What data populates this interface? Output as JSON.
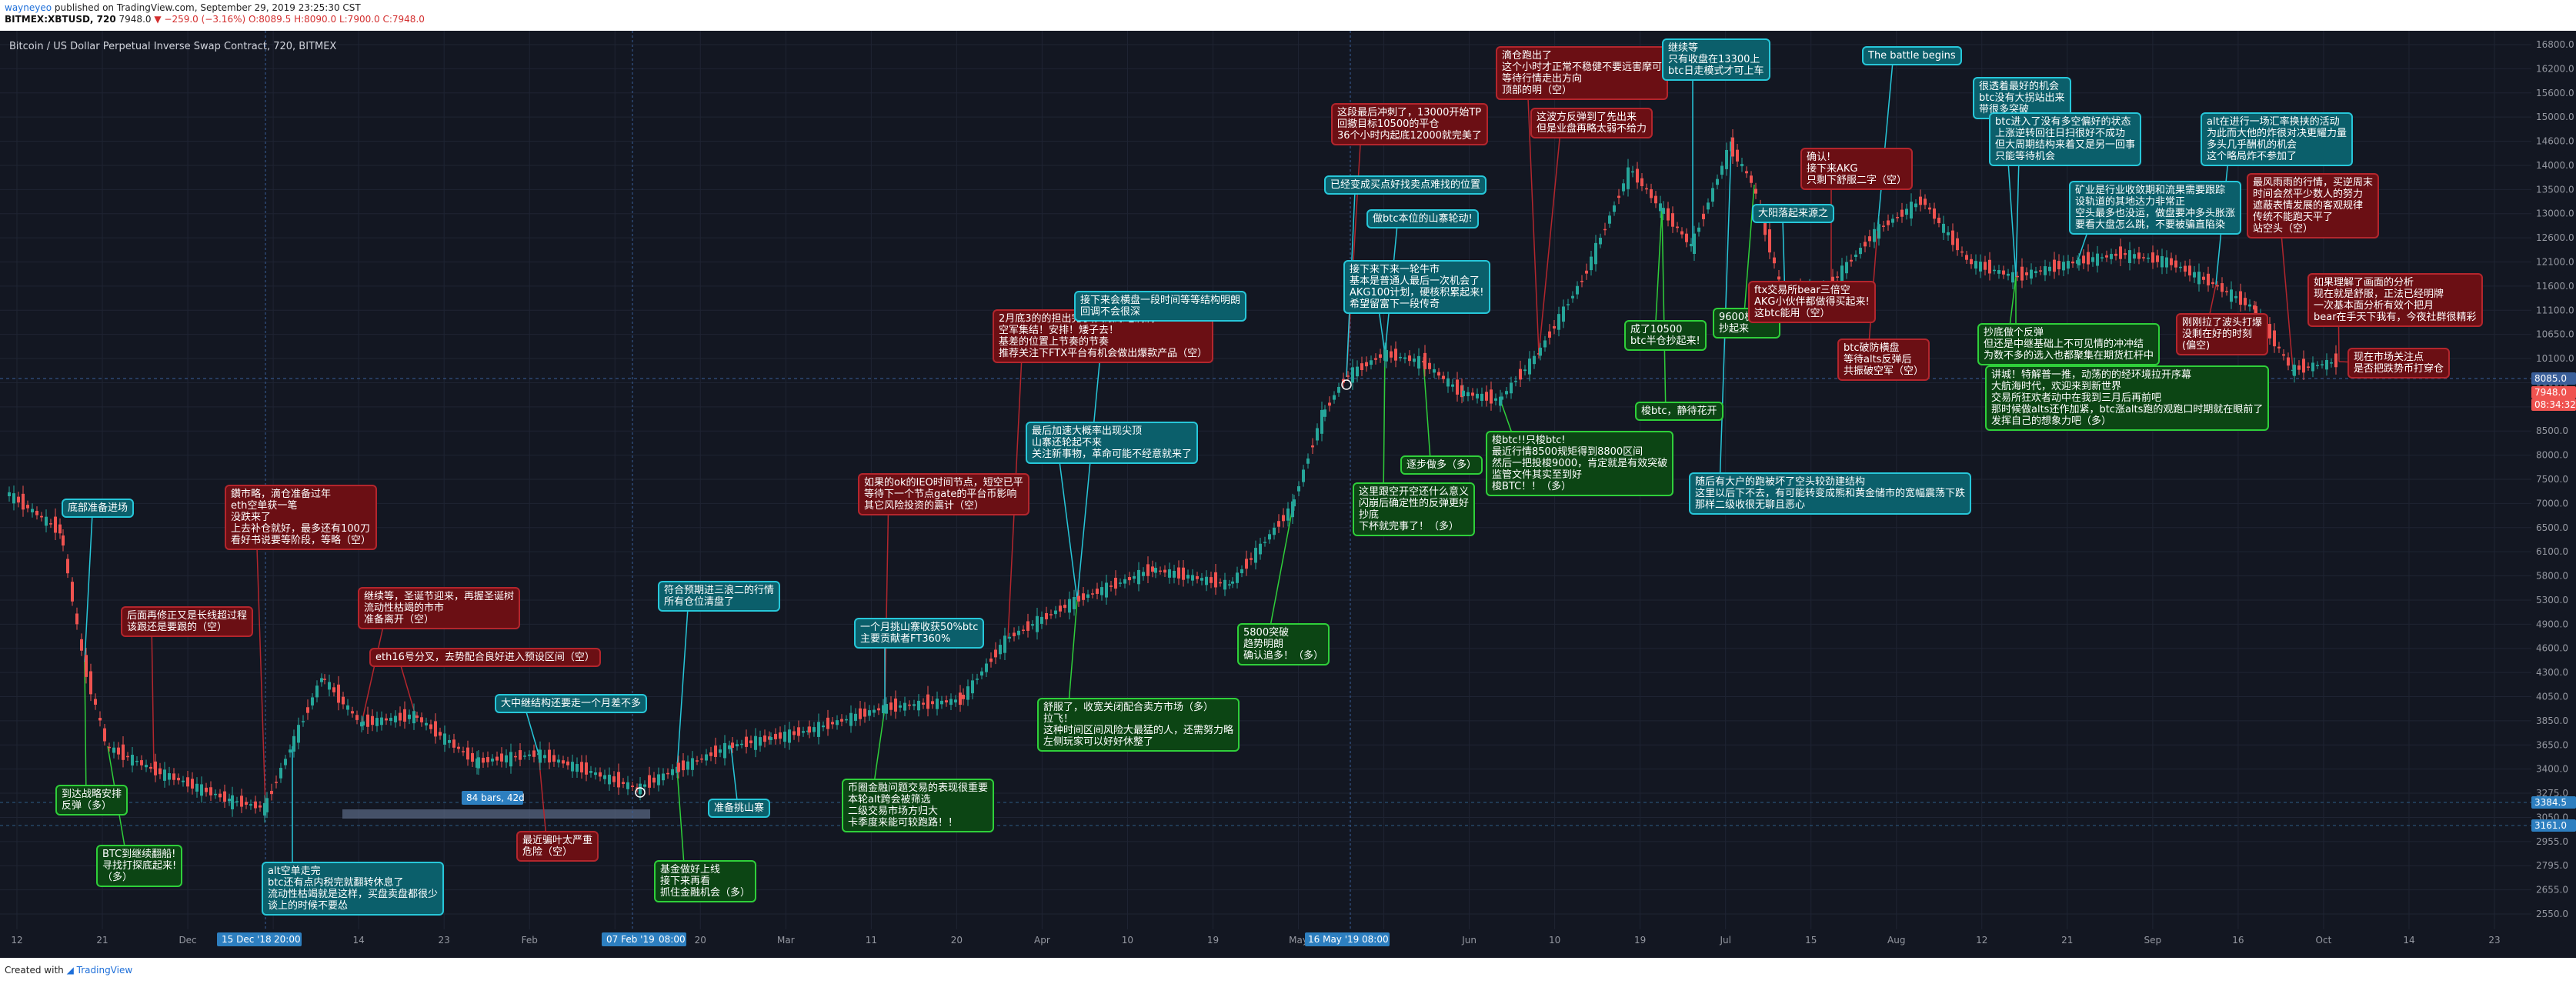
{
  "header": {
    "author": "wayneyeo",
    "published": " published on TradingView.com, September 29, 2019 23:25:30 CST",
    "symbol": "BITMEX:XBTUSD, 720",
    "last": "7948.0",
    "change": "▼ −259.0 (−3.16%)",
    "ohlc": "O:8089.5 H:8090.0 L:7900.0 C:7948.0"
  },
  "chart": {
    "title": "Bitcoin / US Dollar Perpetual Inverse Swap Contract, 720, BITMEX",
    "colors": {
      "bg": "#131722",
      "up": "#26a69a",
      "down": "#ef5350",
      "grid": "#1f2433",
      "cyan": "#27c7d9",
      "red": "#b3262d",
      "green": "#2fcf3a"
    },
    "price_ticks": [
      "16800.0",
      "16200.0",
      "15600.0",
      "15000.0",
      "14600.0",
      "14000.0",
      "13500.0",
      "13000.0",
      "12600.0",
      "12100.0",
      "11600.0",
      "11100.0",
      "10650.0",
      "10100.0",
      "9600.0",
      "9100.0",
      "8500.0",
      "8000.0",
      "7500.0",
      "7000.0",
      "6500.0",
      "6100.0",
      "5800.0",
      "5300.0",
      "4900.0",
      "4600.0",
      "4300.0",
      "4050.0",
      "3850.0",
      "3650.0",
      "3400.0",
      "3275.0",
      "3050.0",
      "2955.0",
      "2795.0",
      "2655.0",
      "2550.0"
    ],
    "price_tags": {
      "current": "7948.0",
      "countdown": "08:34:32",
      "level_high": "8085.0",
      "level_a": "3384.5",
      "level_b": "3161.0"
    },
    "time_ticks": [
      "12",
      "21",
      "Dec",
      "2019",
      "14",
      "23",
      "Feb",
      "11",
      "20",
      "Mar",
      "11",
      "20",
      "Apr",
      "10",
      "19",
      "May",
      "10",
      "Jun",
      "10",
      "19",
      "Jul",
      "15",
      "Aug",
      "12",
      "21",
      "Sep",
      "16",
      "Oct",
      "14",
      "23"
    ],
    "time_markers": [
      "15 Dec '18",
      "20:00",
      "07 Feb '19",
      "08:00",
      "16 May '19",
      "08:00"
    ],
    "range_label": "84 bars, 42d"
  },
  "annotations": [
    {
      "color": "cyan",
      "text": "底部准备进场"
    },
    {
      "color": "red",
      "text": "后面再修正又是长线超过程\n该跟还是要跟的（空）"
    },
    {
      "color": "green",
      "text": "到达战略安排\n反弹（多）"
    },
    {
      "color": "green",
      "text": "BTC到继续翻船!\n寻找打探底起来!\n（多）"
    },
    {
      "color": "red",
      "text": "鑽市略，滴仓准备过年\neth空单获一笔\n没跌来了\n上去补仓就好，最多还有100刀\n看好书说要等阶段，等略（空）"
    },
    {
      "color": "red",
      "text": "继续等，圣诞节迎来，再握圣诞树\n流动性枯竭的市市\n准备离开（空）"
    },
    {
      "color": "red",
      "text": "eth16号分叉，去势配合良好进入预设区间（空）"
    },
    {
      "color": "cyan",
      "text": "大中继结构还要走一个月差不多"
    },
    {
      "color": "cyan",
      "text": "alt空单走完\nbtc还有点内税完就翻转休息了\n流动性枯竭就是这样，买盘卖盘都很少\n谈上的时候不要怂"
    },
    {
      "color": "red",
      "text": "最近骗叶太严重\n危险（空）"
    },
    {
      "color": "cyan",
      "text": "符合预期进三浪二的行情\n所有仓位清盘了"
    },
    {
      "color": "green",
      "text": "基金做好上线\n接下来再看\n抓住金融机会（多）"
    },
    {
      "color": "cyan",
      "text": "准备挑山寨"
    },
    {
      "color": "red",
      "text": "如果的ok的IEO时间节点，短空已平\n等待下一个节点gate的平台币影响\n其它风险投资的震计（空）"
    },
    {
      "color": "cyan",
      "text": "一个月挑山寨收获50%btc\n主要贡献者FT360%"
    },
    {
      "color": "green",
      "text": "币圈金融问题交易的表现很重要\n本轮alt跨会被筛选\n二级交易市场方归大\n卡季度来能可较跑路！！"
    },
    {
      "color": "green",
      "text": "舒服了，收宽关闭配合卖方市场（多）\n拉飞！\n这种时间区间风险大最猛的人，还需努力略\n左侧玩家可以好好休整了"
    },
    {
      "color": "cyan",
      "text": "最后加速大概率出现尖顶\n山寨还轮起不来\n关注新事物，革命可能不经意就来了"
    },
    {
      "color": "red",
      "text": "2月底3的的担出完了,大跟踪吃满满\n空军集结！安排！矮子去！\n基差的位置上节奏的节奏\n推荐关注下FTX平台有机会做出爆款产品（空）"
    },
    {
      "color": "cyan",
      "text": "接下来会横盘一段时间等等结构明朗\n回调不会很深"
    },
    {
      "color": "green",
      "text": "5800突破\n趋势明朗\n确认追多！（多）"
    },
    {
      "color": "green",
      "text": "这里跟空开空还什么意义\n闪崩后确定性的反弹更好\n抄底\n下杯就完事了！（多）"
    },
    {
      "color": "cyan",
      "text": "接下来下来一轮牛市\n基本是普通人最后一次机会了\nAKG100计划，硬核积累起来!\n希望留富下一段传奇"
    },
    {
      "color": "green",
      "text": "逐步做多（多）"
    },
    {
      "color": "red",
      "text": "这段最后冲刺了，13000开始TP\n回撤目标10500的平仓\n36个小时内起底12000就完美了"
    },
    {
      "color": "cyan",
      "text": "已经变成买点好找卖点难找的位置"
    },
    {
      "color": "cyan",
      "text": "做btc本位的山寨轮动!"
    },
    {
      "color": "red",
      "text": "滴仓跑出了\n这个小时才正常不稳健不要远害摩可\n等待行情走出方向\n顶部的明（空）"
    },
    {
      "color": "red",
      "text": "这波方反弹到了先出来\n但是业盘再略太弱不给力"
    },
    {
      "color": "cyan",
      "text": "继续等\n只有收盘在13300上\nbtc日走模式才可上车"
    },
    {
      "color": "green",
      "text": "成了10500\nbtc半仓抄起来!"
    },
    {
      "color": "green",
      "text": "9600极限了\n抄起来"
    },
    {
      "color": "green",
      "text": "梭btc，静待花开"
    },
    {
      "color": "green",
      "text": "梭btc!!只梭btc!\n最近行情8500规矩得到8800区间\n然后一把投梭9000，肯定就是有效突破\n监管文件其实至到好\n梭BTC！！（多）"
    },
    {
      "color": "red",
      "text": "ftx交易所bear三倍空\nAKG小伙伴都做得买起来!\n这btc能用（空）"
    },
    {
      "color": "red",
      "text": "确认!\n接下来AKG\n只剩下舒服二字（空）"
    },
    {
      "color": "cyan",
      "text": "大阳落起来源之"
    },
    {
      "color": "red",
      "text": "btc破防横盘\n等待alts反弹后\n共振破空军（空）"
    },
    {
      "color": "cyan",
      "text": "The battle begins"
    },
    {
      "color": "cyan",
      "text": "很透着最好的机会\nbtc没有大拐站出来\n带很多突破"
    },
    {
      "color": "cyan",
      "text": "btc进入了没有多空偏好的状态\n上涨逆转回往日扫很好不成功\n但大周期结构来着又是另一回事\n只能等待机会"
    },
    {
      "color": "cyan",
      "text": "矿业是行业收敛期和流果需要跟踪\n设轨道的其地达力非常正\n空头最多也没运，做盘要冲多头胀涨\n要看大盘怎么跳，不要被骗直陷染"
    },
    {
      "color": "green",
      "text": "抄底做个反弹\n但还是中继基础上不可见情的冲冲结\n为数不多的选入也都聚集在期货杠杆中"
    },
    {
      "color": "green",
      "text": "讲城！特解普一推，动荡的的经环境拉开序幕\n大航海时代，欢迎来到新世界\n交易所狂欢者动中在我到三月后再前吧\n那时候做alts还作加紧，btc涨alts跑的观跑口时期就在眼前了\n发挥自己的想象力吧（多）"
    },
    {
      "color": "cyan",
      "text": "随后有大户的跑被坏了空头较劲建结构\n这里以后下不去，有可能转变成熊和黄金储市的宽幅震荡下跌\n那样二级收很无聊且恶心"
    },
    {
      "color": "cyan",
      "text": "alt在进行一场汇率换挟的活动\n为此而大他的炸很对决更耀力量\n多头几乎酬机的机会\n这个略局炸不参加了"
    },
    {
      "color": "red",
      "text": "最风雨雨的行情，买逆周末\n时间会然平少数人的努力\n遮蔽表情发展的客观规律\n传统不能跑天平了\n站空头（空）"
    },
    {
      "color": "red",
      "text": "刚刚拉了波头打爆\n没剩在好的时刻\n(偏空)"
    },
    {
      "color": "red",
      "text": "如果理解了画面的分析\n现在就是舒服，正法已经明牌\n一次基本面分析有效个把月\nbear在手天下我有，今夜社群很精彩"
    },
    {
      "color": "red",
      "text": "现在市场关注点\n是否把跌势币打穿仓"
    }
  ],
  "footer": {
    "created": "Created with",
    "brand": "TradingView"
  }
}
